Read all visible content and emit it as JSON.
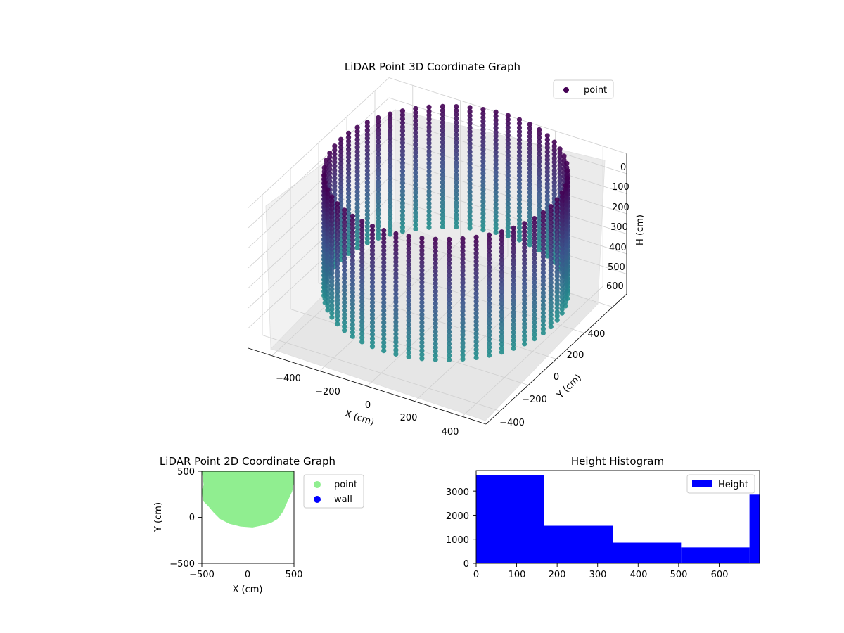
{
  "chart_data": [
    {
      "type": "scatter",
      "projection": "3d",
      "title": "LiDAR Point 3D Coordinate Graph",
      "xlabel": "X (cm)",
      "ylabel": "Y (cm)",
      "zlabel": "H (cm)",
      "x_ticks": [
        "−400",
        "−200",
        "0",
        "200",
        "400"
      ],
      "y_ticks": [
        "−400",
        "−200",
        "0",
        "200",
        "400"
      ],
      "z_ticks": [
        "0",
        "100",
        "200",
        "300",
        "400",
        "500",
        "600"
      ],
      "xlim": [
        -500,
        500
      ],
      "ylim": [
        -500,
        500
      ],
      "zlim": [
        0,
        700
      ],
      "z_inverted": true,
      "colormap": "viridis",
      "colors": {
        "low": "#440154",
        "high": "#21918c"
      },
      "grid": true,
      "legend": {
        "position": "top-right",
        "entries": [
          {
            "label": "point",
            "color": "#440154"
          }
        ]
      },
      "series": [
        {
          "name": "point",
          "description_shape": "ring of points, radius ~480 cm, heights 0-600 cm",
          "ring_radius": 480,
          "h_range": [
            0,
            620
          ]
        }
      ]
    },
    {
      "type": "scatter",
      "title": "LiDAR Point 2D Coordinate Graph",
      "xlabel": "X (cm)",
      "ylabel": "Y (cm)",
      "x_ticks": [
        "−500",
        "0",
        "500"
      ],
      "y_ticks": [
        "500",
        "0",
        "−500"
      ],
      "xlim": [
        -500,
        500
      ],
      "ylim": [
        -500,
        500
      ],
      "legend": {
        "position": "right",
        "entries": [
          {
            "label": "point",
            "color": "#90ee90"
          },
          {
            "label": "wall",
            "color": "#0000ff"
          }
        ]
      },
      "series": [
        {
          "name": "point",
          "color": "#90ee90",
          "outline": [
            [
              -480,
              350
            ],
            [
              -500,
              300
            ],
            [
              -490,
              180
            ],
            [
              -430,
              120
            ],
            [
              -370,
              50
            ],
            [
              -300,
              -20
            ],
            [
              -200,
              -70
            ],
            [
              -80,
              -100
            ],
            [
              50,
              -110
            ],
            [
              150,
              -90
            ],
            [
              250,
              -60
            ],
            [
              320,
              -20
            ],
            [
              380,
              60
            ],
            [
              420,
              150
            ],
            [
              480,
              280
            ],
            [
              500,
              380
            ],
            [
              500,
              500
            ],
            [
              -500,
              500
            ]
          ]
        },
        {
          "name": "wall",
          "color": "#0000ff",
          "points": []
        }
      ]
    },
    {
      "type": "bar",
      "title": "Height Histogram",
      "xlabel": "",
      "ylabel": "",
      "x_ticks": [
        "0",
        "100",
        "200",
        "300",
        "400",
        "500",
        "600"
      ],
      "y_ticks": [
        "0",
        "1000",
        "2000",
        "3000"
      ],
      "xlim": [
        0,
        700
      ],
      "ylim": [
        0,
        3850
      ],
      "color": "#0000ff",
      "legend": {
        "position": "top-right",
        "entries": [
          {
            "label": "Height",
            "color": "#0000ff"
          }
        ]
      },
      "bins": [
        {
          "start": 0,
          "end": 168,
          "count": 3650
        },
        {
          "start": 168,
          "end": 337,
          "count": 1560
        },
        {
          "start": 337,
          "end": 506,
          "count": 860
        },
        {
          "start": 506,
          "end": 675,
          "count": 660
        },
        {
          "start": 675,
          "end": 700,
          "count": 2850
        }
      ]
    }
  ]
}
